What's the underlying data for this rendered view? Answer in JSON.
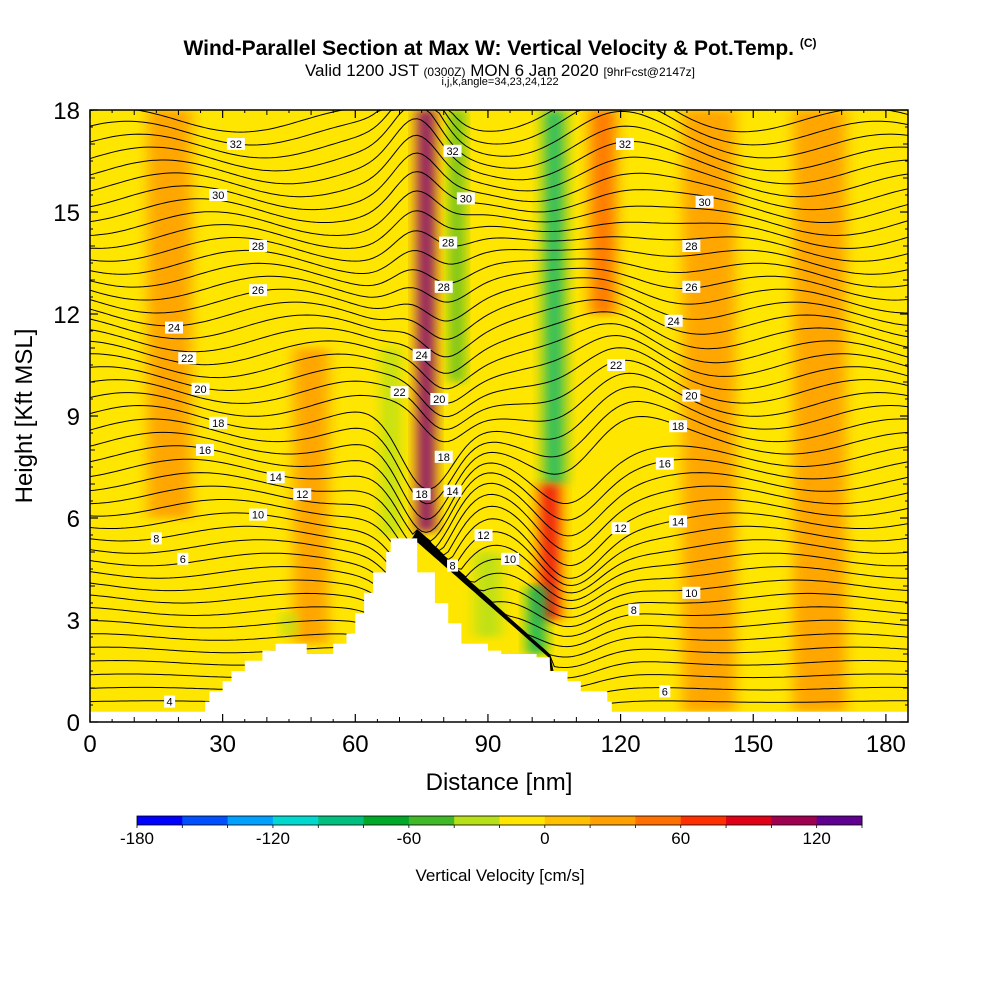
{
  "title": {
    "main": "Wind-Parallel Section at Max W: Vertical Velocity & Pot.Temp.",
    "main_mark": "(C)",
    "valid_a": "Valid 1200 JST",
    "valid_b": "(0300Z)",
    "valid_c": "MON 6 Jan 2020",
    "valid_d": "[9hrFcst@2147z]",
    "indices": "i,j,k,angle=34,23,24,122"
  },
  "chart_data": {
    "type": "heatmap",
    "xlabel": "Distance [nm]",
    "ylabel": "Height [Kft MSL]",
    "xlim": [
      0,
      185
    ],
    "ylim": [
      0,
      18
    ],
    "x_ticks": [
      0,
      30,
      60,
      90,
      120,
      150,
      180
    ],
    "y_ticks": [
      0,
      3,
      6,
      9,
      12,
      15,
      18
    ],
    "colorbar": {
      "label": "Vertical Velocity [cm/s]",
      "range": [
        -180,
        140
      ],
      "step": 20,
      "tick_values": [
        -180,
        -120,
        -60,
        0,
        60,
        120
      ],
      "colors": [
        "#0000ff",
        "#0050ff",
        "#00a0ff",
        "#00d8d0",
        "#00c080",
        "#00a828",
        "#40b828",
        "#b8e018",
        "#ffe600",
        "#ffc000",
        "#ffa000",
        "#ff7000",
        "#ff3000",
        "#e00018",
        "#a00050",
        "#600090"
      ]
    },
    "terrain_profile": [
      [
        0,
        0.3
      ],
      [
        26,
        0.3
      ],
      [
        26,
        0.6
      ],
      [
        27,
        0.6
      ],
      [
        27,
        0.9
      ],
      [
        30,
        0.9
      ],
      [
        30,
        1.2
      ],
      [
        32,
        1.2
      ],
      [
        32,
        1.5
      ],
      [
        35,
        1.5
      ],
      [
        35,
        1.8
      ],
      [
        39,
        1.8
      ],
      [
        39,
        2.1
      ],
      [
        42,
        2.1
      ],
      [
        42,
        2.3
      ],
      [
        49,
        2.3
      ],
      [
        49,
        2.0
      ],
      [
        55,
        2.0
      ],
      [
        55,
        2.3
      ],
      [
        58,
        2.3
      ],
      [
        58,
        2.6
      ],
      [
        60,
        2.6
      ],
      [
        60,
        3.2
      ],
      [
        62,
        3.2
      ],
      [
        62,
        3.8
      ],
      [
        64,
        3.8
      ],
      [
        64,
        4.4
      ],
      [
        67,
        4.4
      ],
      [
        67,
        5.0
      ],
      [
        68,
        5.0
      ],
      [
        68,
        5.4
      ],
      [
        74,
        5.4
      ],
      [
        74,
        4.4
      ],
      [
        78,
        4.4
      ],
      [
        78,
        3.5
      ],
      [
        81,
        3.5
      ],
      [
        81,
        2.9
      ],
      [
        84,
        2.9
      ],
      [
        84,
        2.3
      ],
      [
        90,
        2.3
      ],
      [
        90,
        2.1
      ],
      [
        93,
        2.1
      ],
      [
        93,
        2.0
      ],
      [
        101,
        2.0
      ],
      [
        101,
        1.9
      ],
      [
        104,
        1.9
      ],
      [
        104,
        1.5
      ],
      [
        108,
        1.5
      ],
      [
        108,
        1.2
      ],
      [
        111,
        1.2
      ],
      [
        111,
        0.9
      ],
      [
        117,
        0.9
      ],
      [
        117,
        0.6
      ],
      [
        118,
        0.6
      ],
      [
        118,
        0.3
      ],
      [
        185,
        0.3
      ]
    ],
    "velocity_features": [
      {
        "x": 76,
        "y0": 5.6,
        "y1": 18,
        "value": 110,
        "width": 4
      },
      {
        "x": 83,
        "y0": 10,
        "y1": 18,
        "value": -45,
        "width": 3
      },
      {
        "x": 105,
        "y0": 7,
        "y1": 18,
        "value": -60,
        "width": 5
      },
      {
        "x": 116,
        "y0": 12,
        "y1": 18,
        "value": 45,
        "width": 6
      },
      {
        "x": 104,
        "y0": 3,
        "y1": 7,
        "value": 60,
        "width": 5
      },
      {
        "x": 101,
        "y0": 2,
        "y1": 4,
        "value": -70,
        "width": 4
      },
      {
        "x": 18,
        "y0": 6,
        "y1": 18,
        "value": 20,
        "width": 10
      },
      {
        "x": 50,
        "y0": 2.3,
        "y1": 11,
        "value": 25,
        "width": 8
      },
      {
        "x": 140,
        "y0": 0.3,
        "y1": 18,
        "value": 25,
        "width": 12
      },
      {
        "x": 165,
        "y0": 0.3,
        "y1": 18,
        "value": 25,
        "width": 12
      },
      {
        "x": 68,
        "y0": 5.5,
        "y1": 11,
        "value": -30,
        "width": 4
      },
      {
        "x": 90,
        "y0": 2.5,
        "y1": 5,
        "value": -25,
        "width": 6
      },
      {
        "x": 45,
        "y0": 2.5,
        "y1": 3.2,
        "value": -30,
        "width": 3
      }
    ],
    "theta_labels": [
      {
        "text": "32",
        "x": 33,
        "y": 17.0
      },
      {
        "text": "30",
        "x": 29,
        "y": 15.5
      },
      {
        "text": "28",
        "x": 38,
        "y": 14.0
      },
      {
        "text": "26",
        "x": 38,
        "y": 12.7
      },
      {
        "text": "24",
        "x": 19,
        "y": 11.6
      },
      {
        "text": "22",
        "x": 22,
        "y": 10.7
      },
      {
        "text": "20",
        "x": 25,
        "y": 9.8
      },
      {
        "text": "18",
        "x": 29,
        "y": 8.8
      },
      {
        "text": "16",
        "x": 26,
        "y": 8.0
      },
      {
        "text": "14",
        "x": 42,
        "y": 7.2
      },
      {
        "text": "12",
        "x": 48,
        "y": 6.7
      },
      {
        "text": "10",
        "x": 38,
        "y": 6.1
      },
      {
        "text": "8",
        "x": 15,
        "y": 5.4
      },
      {
        "text": "6",
        "x": 21,
        "y": 4.8
      },
      {
        "text": "4",
        "x": 18,
        "y": 0.6
      },
      {
        "text": "32",
        "x": 82,
        "y": 16.8
      },
      {
        "text": "30",
        "x": 85,
        "y": 15.4
      },
      {
        "text": "28",
        "x": 81,
        "y": 14.1
      },
      {
        "text": "28",
        "x": 80,
        "y": 12.8
      },
      {
        "text": "24",
        "x": 75,
        "y": 10.8
      },
      {
        "text": "22",
        "x": 70,
        "y": 9.7
      },
      {
        "text": "20",
        "x": 79,
        "y": 9.5
      },
      {
        "text": "18",
        "x": 80,
        "y": 7.8
      },
      {
        "text": "18",
        "x": 75,
        "y": 6.7
      },
      {
        "text": "14",
        "x": 82,
        "y": 6.8
      },
      {
        "text": "12",
        "x": 89,
        "y": 5.5
      },
      {
        "text": "10",
        "x": 95,
        "y": 4.8
      },
      {
        "text": "8",
        "x": 82,
        "y": 4.6
      },
      {
        "text": "32",
        "x": 121,
        "y": 17.0
      },
      {
        "text": "30",
        "x": 139,
        "y": 15.3
      },
      {
        "text": "28",
        "x": 136,
        "y": 14.0
      },
      {
        "text": "26",
        "x": 136,
        "y": 12.8
      },
      {
        "text": "24",
        "x": 132,
        "y": 11.8
      },
      {
        "text": "22",
        "x": 119,
        "y": 10.5
      },
      {
        "text": "20",
        "x": 136,
        "y": 9.6
      },
      {
        "text": "18",
        "x": 133,
        "y": 8.7
      },
      {
        "text": "16",
        "x": 130,
        "y": 7.6
      },
      {
        "text": "14",
        "x": 133,
        "y": 5.9
      },
      {
        "text": "12",
        "x": 120,
        "y": 5.7
      },
      {
        "text": "10",
        "x": 136,
        "y": 3.8
      },
      {
        "text": "8",
        "x": 123,
        "y": 3.3
      },
      {
        "text": "6",
        "x": 130,
        "y": 0.9
      }
    ]
  }
}
